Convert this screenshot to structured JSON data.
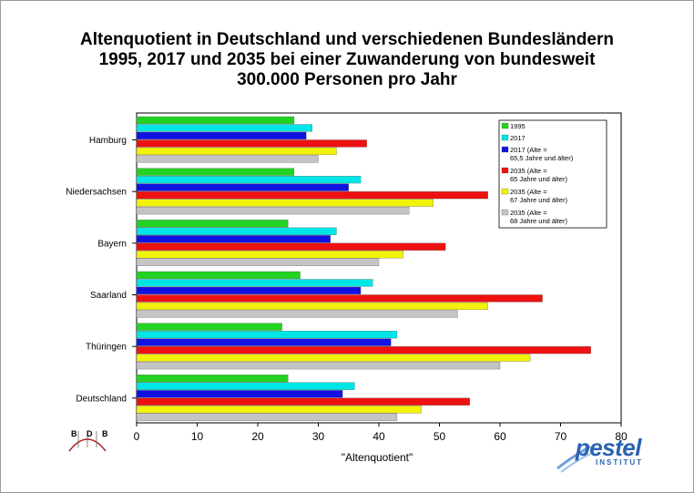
{
  "chart_data": {
    "type": "bar",
    "orientation": "horizontal",
    "title_lines": [
      "Altenquotient in Deutschland und verschiedenen Bundesländern",
      "1995, 2017 und 2035 bei einer Zuwanderung von bundesweit",
      "300.000 Personen pro Jahr"
    ],
    "xlabel": "\"Altenquotient\"",
    "ylabel": "",
    "xlim": [
      0,
      80
    ],
    "xticks": [
      0,
      10,
      20,
      30,
      40,
      50,
      60,
      70,
      80
    ],
    "grid": false,
    "legend_position": "top-right",
    "categories": [
      "Hamburg",
      "Niedersachsen",
      "Bayern",
      "Saarland",
      "Thüringen",
      "Deutschland"
    ],
    "series": [
      {
        "name": "1995",
        "color": "#22d322",
        "values": [
          26,
          26,
          25,
          27,
          24,
          25
        ]
      },
      {
        "name": "2017",
        "color": "#00e5e5",
        "values": [
          29,
          37,
          33,
          39,
          43,
          36
        ]
      },
      {
        "name": "2017 (Alte = 65,5 Jahre und älter)",
        "color": "#1212e0",
        "values": [
          28,
          35,
          32,
          37,
          42,
          34
        ]
      },
      {
        "name": "2035 (Alte = 65 Jahre und älter)",
        "color": "#ee1111",
        "values": [
          38,
          58,
          51,
          67,
          75,
          55
        ]
      },
      {
        "name": "2035 (Alte = 67 Jahre und älter)",
        "color": "#f2f20a",
        "values": [
          33,
          49,
          44,
          58,
          65,
          47
        ]
      },
      {
        "name": "2035 (Alte = 68 Jahre und älter)",
        "color": "#c4c4c4",
        "values": [
          30,
          45,
          40,
          53,
          60,
          43
        ]
      }
    ]
  },
  "legend_entries": [
    {
      "lines": [
        "1995"
      ]
    },
    {
      "lines": [
        "2017"
      ]
    },
    {
      "lines": [
        "2017 (Alte =",
        "65,5 Jahre und älter)"
      ]
    },
    {
      "lines": [
        "2035 (Alte =",
        "65 Jahre und älter)"
      ]
    },
    {
      "lines": [
        "2035 (Alte =",
        "67 Jahre und älter)"
      ]
    },
    {
      "lines": [
        "2035 (Alte =",
        "68 Jahre und älter)"
      ]
    }
  ],
  "logos": {
    "bdb": {
      "letters": "B D B"
    },
    "pestel": {
      "name": "pestel",
      "subtitle": "INSTITUT"
    }
  }
}
